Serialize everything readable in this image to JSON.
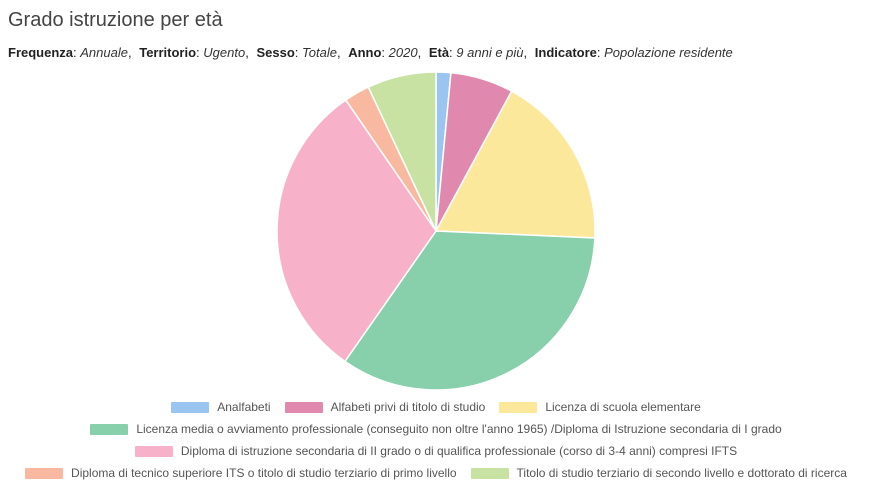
{
  "title": "Grado istruzione per età",
  "filters": [
    {
      "key": "Frequenza",
      "value": "Annuale"
    },
    {
      "key": "Territorio",
      "value": "Ugento"
    },
    {
      "key": "Sesso",
      "value": "Totale"
    },
    {
      "key": "Anno",
      "value": "2020"
    },
    {
      "key": "Età",
      "value": "9 anni e più"
    },
    {
      "key": "Indicatore",
      "value": "Popolazione residente"
    }
  ],
  "chart_data": {
    "type": "pie",
    "title": "Grado istruzione per età",
    "unit": "%",
    "start_angle_deg": 0,
    "direction": "clockwise",
    "slices": [
      {
        "label": "Analfabeti",
        "value": 1.5,
        "color": "#99c5f0"
      },
      {
        "label": "Alfabeti privi di titolo di studio",
        "value": 6.4,
        "color": "#e088ad"
      },
      {
        "label": "Licenza di scuola elementare",
        "value": 17.8,
        "color": "#fce89a"
      },
      {
        "label": "Licenza media o avviamento professionale (conseguito non oltre l'anno 1965) /Diploma di Istruzione secondaria di I grado",
        "value": 34.0,
        "color": "#88cfac"
      },
      {
        "label": "Diploma di istruzione secondaria di II grado o di qualifica professionale (corso di 3-4 anni) compresi IFTS",
        "value": 30.7,
        "color": "#f7b1c9"
      },
      {
        "label": "Diploma di tecnico superiore ITS o titolo di studio terziario di primo livello",
        "value": 2.6,
        "color": "#f9b9a0"
      },
      {
        "label": "Titolo di studio terziario di secondo livello e dottorato di ricerca",
        "value": 7.0,
        "color": "#c8e2a3"
      }
    ],
    "legend_position": "bottom"
  }
}
